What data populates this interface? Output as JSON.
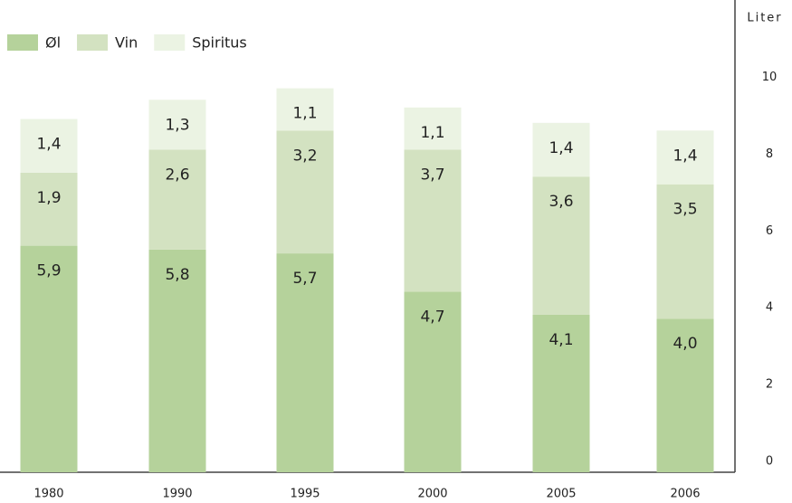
{
  "chart_data": {
    "type": "stacked_bar",
    "y_axis_label": "Liter",
    "categories": [
      "1980",
      "1990",
      "1995",
      "2000",
      "2005",
      "2006"
    ],
    "series": [
      {
        "name": "Øl",
        "color": "#b5d29b",
        "values": [
          5.9,
          5.8,
          5.7,
          4.7,
          4.1,
          4.0
        ],
        "value_labels": [
          "5,9",
          "5,8",
          "5,7",
          "4,7",
          "4,1",
          "4,0"
        ]
      },
      {
        "name": "Vin",
        "color": "#d3e2c1",
        "values": [
          1.9,
          2.6,
          3.2,
          3.7,
          3.6,
          3.5
        ],
        "value_labels": [
          "1,9",
          "2,6",
          "3,2",
          "3,7",
          "3,6",
          "3,5"
        ]
      },
      {
        "name": "Spiritus",
        "color": "#ebf3e3",
        "values": [
          1.4,
          1.3,
          1.1,
          1.1,
          1.4,
          1.4
        ],
        "value_labels": [
          "1,4",
          "1,3",
          "1,1",
          "1,1",
          "1,4",
          "1,4"
        ]
      }
    ],
    "ylim": [
      0,
      12.3
    ],
    "yticks": [
      0,
      2,
      4,
      6,
      8,
      10
    ],
    "legend": "top-left"
  }
}
